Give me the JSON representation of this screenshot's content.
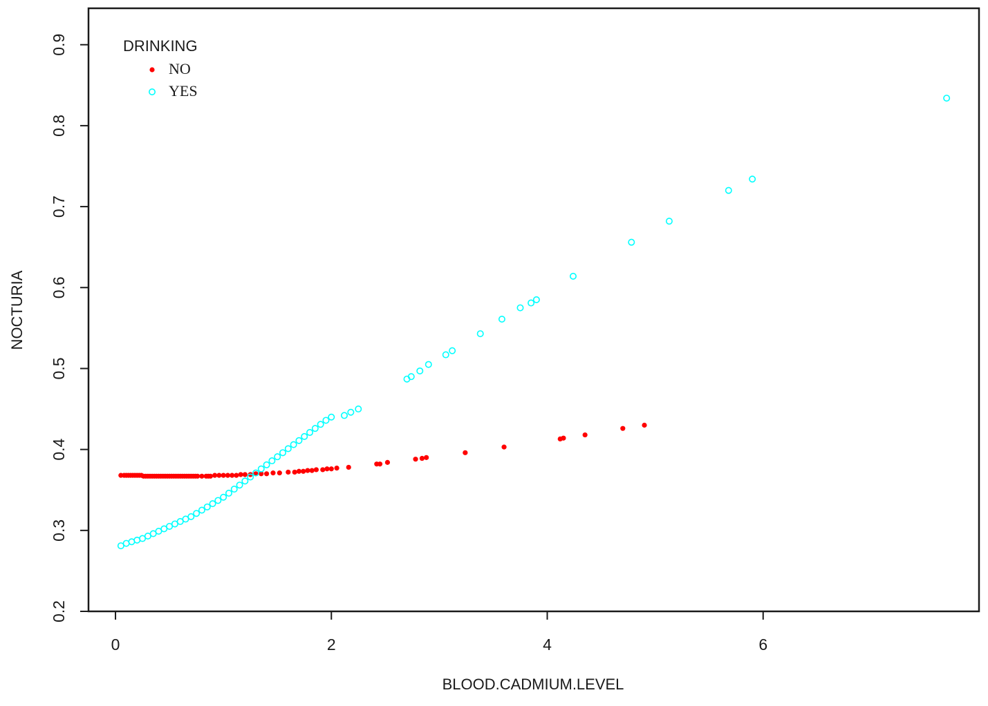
{
  "chart_data": {
    "type": "scatter",
    "xlabel": "BLOOD.CADMIUM.LEVEL",
    "ylabel": "NOCTURIA",
    "xlim": [
      -0.25,
      8.0
    ],
    "ylim": [
      0.2,
      0.945
    ],
    "x_ticks": [
      0,
      2,
      4,
      6
    ],
    "x_tick_labels": [
      "0",
      "2",
      "4",
      "6"
    ],
    "y_ticks": [
      0.2,
      0.3,
      0.4,
      0.5,
      0.6,
      0.7,
      0.8,
      0.9
    ],
    "y_tick_labels": [
      "0.2",
      "0.3",
      "0.4",
      "0.5",
      "0.6",
      "0.7",
      "0.8",
      "0.9"
    ],
    "grid": false,
    "legend": {
      "title": "DRINKING",
      "position": "top-left"
    },
    "series": [
      {
        "name": "NO",
        "color": "#ff0000",
        "marker": "filled-circle",
        "points": [
          [
            0.05,
            0.368
          ],
          [
            0.08,
            0.368
          ],
          [
            0.1,
            0.368
          ],
          [
            0.12,
            0.368
          ],
          [
            0.14,
            0.368
          ],
          [
            0.16,
            0.368
          ],
          [
            0.18,
            0.368
          ],
          [
            0.2,
            0.368
          ],
          [
            0.22,
            0.368
          ],
          [
            0.24,
            0.368
          ],
          [
            0.26,
            0.367
          ],
          [
            0.28,
            0.367
          ],
          [
            0.3,
            0.367
          ],
          [
            0.32,
            0.367
          ],
          [
            0.34,
            0.367
          ],
          [
            0.36,
            0.367
          ],
          [
            0.38,
            0.367
          ],
          [
            0.4,
            0.367
          ],
          [
            0.42,
            0.367
          ],
          [
            0.44,
            0.367
          ],
          [
            0.46,
            0.367
          ],
          [
            0.48,
            0.367
          ],
          [
            0.5,
            0.367
          ],
          [
            0.52,
            0.367
          ],
          [
            0.54,
            0.367
          ],
          [
            0.56,
            0.367
          ],
          [
            0.58,
            0.367
          ],
          [
            0.6,
            0.367
          ],
          [
            0.62,
            0.367
          ],
          [
            0.64,
            0.367
          ],
          [
            0.66,
            0.367
          ],
          [
            0.68,
            0.367
          ],
          [
            0.7,
            0.367
          ],
          [
            0.72,
            0.367
          ],
          [
            0.74,
            0.367
          ],
          [
            0.76,
            0.367
          ],
          [
            0.8,
            0.367
          ],
          [
            0.84,
            0.367
          ],
          [
            0.86,
            0.367
          ],
          [
            0.88,
            0.367
          ],
          [
            0.92,
            0.368
          ],
          [
            0.96,
            0.368
          ],
          [
            1.0,
            0.368
          ],
          [
            1.04,
            0.368
          ],
          [
            1.08,
            0.368
          ],
          [
            1.12,
            0.368
          ],
          [
            1.16,
            0.369
          ],
          [
            1.2,
            0.369
          ],
          [
            1.25,
            0.369
          ],
          [
            1.3,
            0.37
          ],
          [
            1.35,
            0.37
          ],
          [
            1.4,
            0.37
          ],
          [
            1.46,
            0.371
          ],
          [
            1.52,
            0.371
          ],
          [
            1.6,
            0.372
          ],
          [
            1.66,
            0.372
          ],
          [
            1.7,
            0.373
          ],
          [
            1.74,
            0.373
          ],
          [
            1.78,
            0.374
          ],
          [
            1.82,
            0.374
          ],
          [
            1.86,
            0.375
          ],
          [
            1.92,
            0.375
          ],
          [
            1.96,
            0.376
          ],
          [
            2.0,
            0.376
          ],
          [
            2.05,
            0.377
          ],
          [
            2.16,
            0.378
          ],
          [
            2.42,
            0.382
          ],
          [
            2.45,
            0.382
          ],
          [
            2.52,
            0.384
          ],
          [
            2.78,
            0.388
          ],
          [
            2.84,
            0.389
          ],
          [
            2.88,
            0.39
          ],
          [
            3.24,
            0.396
          ],
          [
            3.6,
            0.403
          ],
          [
            4.12,
            0.413
          ],
          [
            4.15,
            0.414
          ],
          [
            4.35,
            0.418
          ],
          [
            4.7,
            0.426
          ],
          [
            4.9,
            0.43
          ]
        ]
      },
      {
        "name": "YES",
        "color": "#00ffff",
        "marker": "open-circle",
        "points": [
          [
            0.05,
            0.281
          ],
          [
            0.1,
            0.284
          ],
          [
            0.15,
            0.286
          ],
          [
            0.2,
            0.288
          ],
          [
            0.25,
            0.29
          ],
          [
            0.3,
            0.293
          ],
          [
            0.35,
            0.296
          ],
          [
            0.4,
            0.299
          ],
          [
            0.45,
            0.302
          ],
          [
            0.5,
            0.305
          ],
          [
            0.55,
            0.308
          ],
          [
            0.6,
            0.311
          ],
          [
            0.65,
            0.314
          ],
          [
            0.7,
            0.317
          ],
          [
            0.75,
            0.321
          ],
          [
            0.8,
            0.325
          ],
          [
            0.85,
            0.329
          ],
          [
            0.9,
            0.333
          ],
          [
            0.95,
            0.337
          ],
          [
            1.0,
            0.341
          ],
          [
            1.05,
            0.346
          ],
          [
            1.1,
            0.351
          ],
          [
            1.15,
            0.356
          ],
          [
            1.2,
            0.361
          ],
          [
            1.25,
            0.366
          ],
          [
            1.3,
            0.371
          ],
          [
            1.35,
            0.376
          ],
          [
            1.4,
            0.381
          ],
          [
            1.45,
            0.386
          ],
          [
            1.5,
            0.391
          ],
          [
            1.55,
            0.396
          ],
          [
            1.6,
            0.401
          ],
          [
            1.65,
            0.406
          ],
          [
            1.7,
            0.411
          ],
          [
            1.75,
            0.416
          ],
          [
            1.8,
            0.421
          ],
          [
            1.85,
            0.426
          ],
          [
            1.9,
            0.431
          ],
          [
            1.95,
            0.436
          ],
          [
            2.0,
            0.44
          ],
          [
            2.12,
            0.442
          ],
          [
            2.18,
            0.446
          ],
          [
            2.25,
            0.45
          ],
          [
            2.7,
            0.487
          ],
          [
            2.74,
            0.49
          ],
          [
            2.82,
            0.497
          ],
          [
            2.9,
            0.505
          ],
          [
            3.06,
            0.517
          ],
          [
            3.12,
            0.522
          ],
          [
            3.38,
            0.543
          ],
          [
            3.58,
            0.561
          ],
          [
            3.75,
            0.575
          ],
          [
            3.85,
            0.581
          ],
          [
            3.9,
            0.585
          ],
          [
            4.24,
            0.614
          ],
          [
            4.78,
            0.656
          ],
          [
            5.13,
            0.682
          ],
          [
            5.68,
            0.72
          ],
          [
            5.9,
            0.734
          ],
          [
            7.7,
            0.834
          ]
        ]
      }
    ]
  }
}
